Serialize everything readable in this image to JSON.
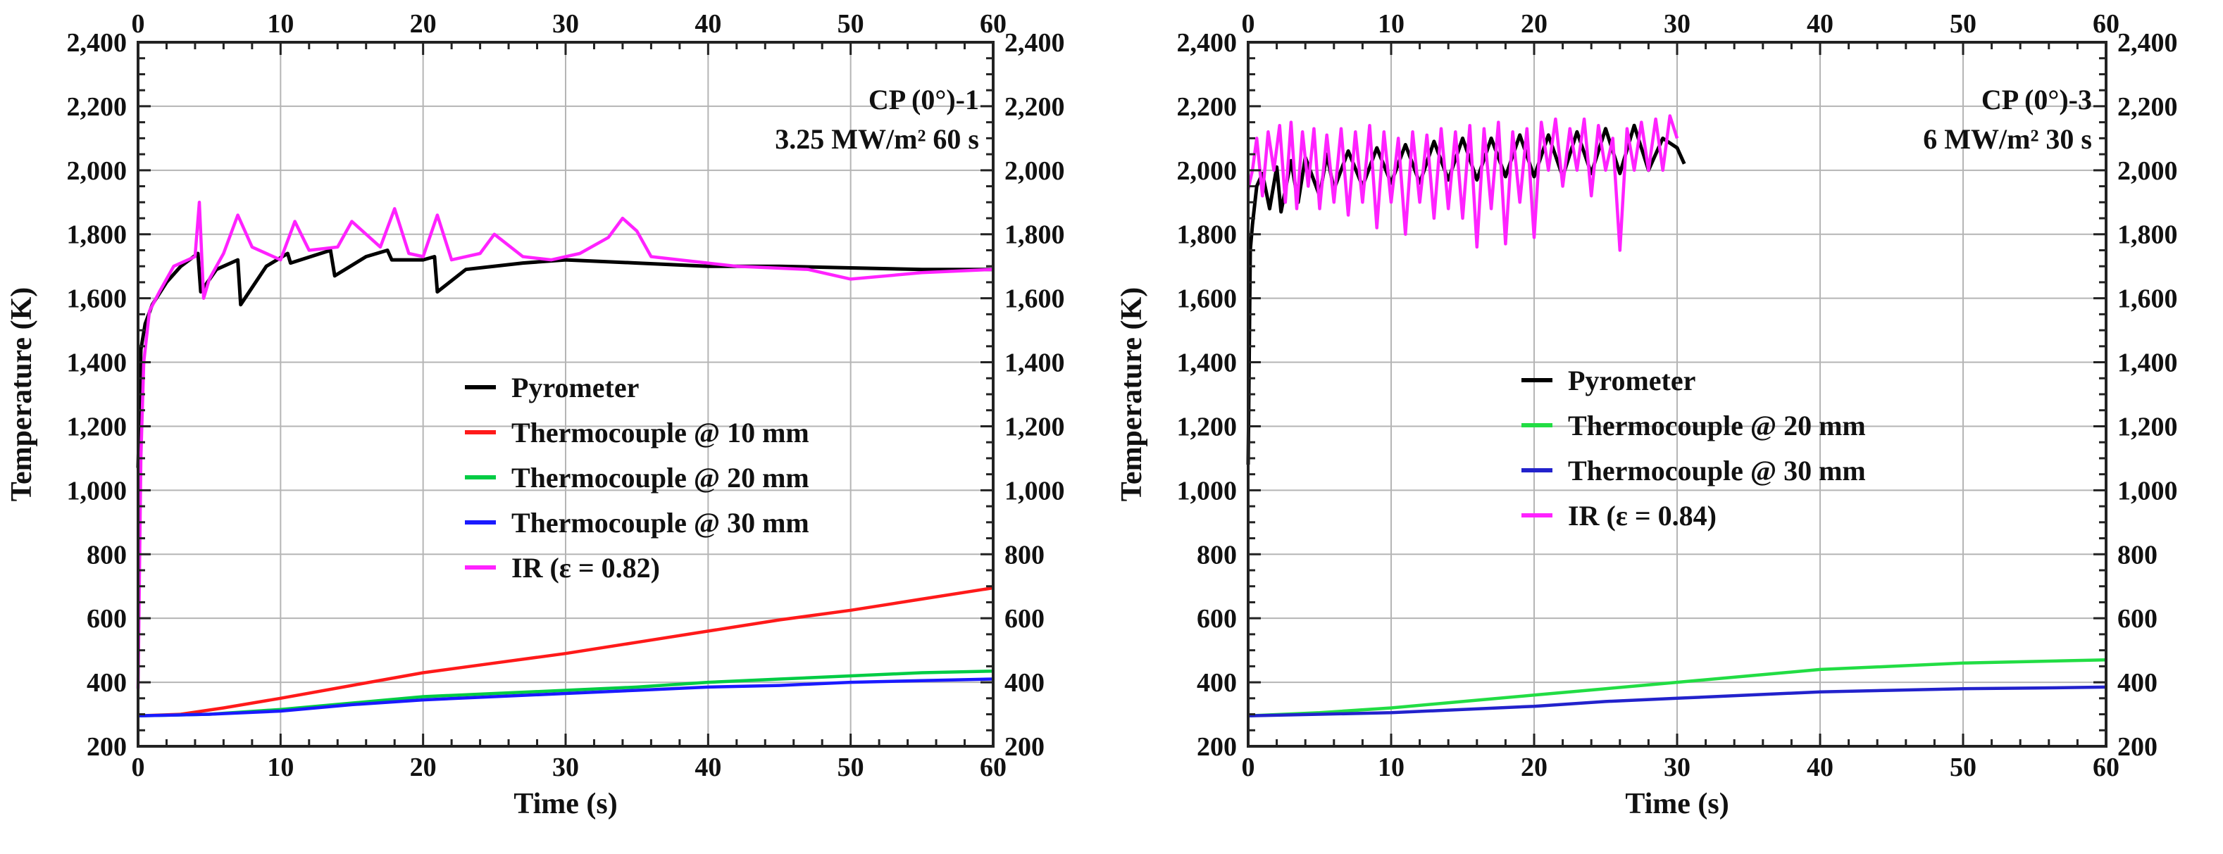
{
  "chart_data": [
    {
      "type": "line",
      "annotation": {
        "line1": "CP (0°)-1",
        "line2": "3.25 MW/m² 60 s"
      },
      "xlabel": "Time (s)",
      "ylabel": "Temperature (K)",
      "xlim": [
        0,
        60
      ],
      "ylim": [
        200,
        2400
      ],
      "x_ticks": [
        0,
        10,
        20,
        30,
        40,
        50,
        60
      ],
      "y_ticks": [
        200,
        400,
        600,
        800,
        1000,
        1200,
        1400,
        1600,
        1800,
        2000,
        2200,
        2400
      ],
      "x_tick_labels": [
        "0",
        "10",
        "20",
        "30",
        "40",
        "50",
        "60"
      ],
      "y_tick_labels": [
        "200",
        "400",
        "600",
        "800",
        "1,000",
        "1,200",
        "1,400",
        "1,600",
        "1,800",
        "2,000",
        "2,200",
        "2,400"
      ],
      "grid": true,
      "legend_position": "center",
      "series": [
        {
          "name": "Pyrometer",
          "color": "#000000",
          "x": [
            0,
            0.2,
            0.5,
            1,
            2,
            3,
            4.2,
            4.4,
            5.5,
            7,
            7.2,
            9,
            10.5,
            10.7,
            13.5,
            13.8,
            16,
            17.5,
            17.8,
            20,
            20.8,
            21,
            23,
            27,
            30,
            35,
            40,
            45,
            50,
            55,
            60
          ],
          "values": [
            1070,
            1440,
            1520,
            1580,
            1650,
            1700,
            1740,
            1620,
            1690,
            1720,
            1580,
            1700,
            1740,
            1710,
            1750,
            1670,
            1730,
            1750,
            1720,
            1720,
            1730,
            1620,
            1690,
            1710,
            1720,
            1710,
            1700,
            1700,
            1695,
            1690,
            1690
          ]
        },
        {
          "name": "Thermocouple @ 10 mm",
          "color": "#ff1a1a",
          "x": [
            0,
            3,
            6,
            10,
            15,
            20,
            25,
            30,
            35,
            40,
            45,
            50,
            55,
            60
          ],
          "values": [
            295,
            300,
            320,
            350,
            390,
            430,
            460,
            490,
            525,
            560,
            595,
            625,
            660,
            695
          ]
        },
        {
          "name": "Thermocouple @ 20 mm",
          "color": "#00cc44",
          "x": [
            0,
            5,
            10,
            15,
            20,
            25,
            30,
            35,
            40,
            45,
            50,
            55,
            60
          ],
          "values": [
            295,
            300,
            315,
            335,
            355,
            365,
            375,
            385,
            400,
            410,
            420,
            430,
            435
          ]
        },
        {
          "name": "Thermocouple @ 30 mm",
          "color": "#1a1aff",
          "x": [
            0,
            5,
            10,
            15,
            20,
            25,
            30,
            35,
            40,
            45,
            50,
            55,
            60
          ],
          "values": [
            295,
            300,
            310,
            330,
            345,
            355,
            365,
            375,
            385,
            390,
            400,
            405,
            410
          ]
        },
        {
          "name": "IR (ε = 0.82)",
          "color": "#ff22ff",
          "x": [
            0,
            0.2,
            0.4,
            0.8,
            1.5,
            2.5,
            4,
            4.3,
            4.6,
            5,
            6,
            7,
            8,
            10,
            11,
            12,
            14,
            15,
            17,
            18,
            19,
            20,
            21,
            22,
            24,
            25,
            27,
            29,
            31,
            33,
            34,
            35,
            36,
            38,
            42,
            47,
            50,
            55,
            60
          ],
          "values": [
            380,
            1100,
            1400,
            1560,
            1620,
            1700,
            1730,
            1900,
            1600,
            1660,
            1740,
            1860,
            1760,
            1720,
            1840,
            1750,
            1760,
            1840,
            1760,
            1880,
            1740,
            1730,
            1860,
            1720,
            1740,
            1800,
            1730,
            1720,
            1740,
            1790,
            1850,
            1810,
            1730,
            1720,
            1700,
            1690,
            1660,
            1680,
            1690
          ]
        }
      ]
    },
    {
      "type": "line",
      "annotation": {
        "line1": "CP (0°)-3",
        "line2": "6 MW/m² 30 s"
      },
      "xlabel": "Time (s)",
      "ylabel": "Temperature (K)",
      "xlim": [
        0,
        60
      ],
      "ylim": [
        200,
        2400
      ],
      "x_ticks": [
        0,
        10,
        20,
        30,
        40,
        50,
        60
      ],
      "y_ticks": [
        200,
        400,
        600,
        800,
        1000,
        1200,
        1400,
        1600,
        1800,
        2000,
        2200,
        2400
      ],
      "x_tick_labels": [
        "0",
        "10",
        "20",
        "30",
        "40",
        "50",
        "60"
      ],
      "y_tick_labels": [
        "200",
        "400",
        "600",
        "800",
        "1,000",
        "1,200",
        "1,400",
        "1,600",
        "1,800",
        "2,000",
        "2,200",
        "2,400"
      ],
      "grid": true,
      "legend_position": "center",
      "series": [
        {
          "name": "Pyrometer",
          "color": "#000000",
          "x": [
            0,
            0.15,
            0.3,
            0.6,
            1,
            1.5,
            2,
            2.3,
            3,
            3.5,
            4,
            5,
            5.5,
            6,
            7,
            8,
            9,
            10,
            11,
            12,
            13,
            14,
            15,
            16,
            17,
            18,
            19,
            20,
            21,
            22,
            23,
            24,
            25,
            26,
            27,
            28,
            29,
            30,
            30.5
          ],
          "values": [
            1080,
            1750,
            1830,
            1950,
            1990,
            1880,
            2010,
            1870,
            2030,
            1900,
            2040,
            1920,
            2050,
            1940,
            2060,
            1950,
            2070,
            1960,
            2080,
            1960,
            2090,
            1970,
            2100,
            1970,
            2100,
            1980,
            2110,
            1980,
            2110,
            1980,
            2120,
            1990,
            2130,
            1990,
            2140,
            2000,
            2100,
            2070,
            2020
          ]
        },
        {
          "name": "Thermocouple @ 20 mm",
          "color": "#22dd44",
          "x": [
            0,
            5,
            10,
            15,
            20,
            25,
            30,
            35,
            40,
            45,
            50,
            55,
            60
          ],
          "values": [
            295,
            305,
            320,
            340,
            360,
            380,
            400,
            420,
            440,
            450,
            460,
            465,
            470
          ]
        },
        {
          "name": "Thermocouple @ 30 mm",
          "color": "#2222cc",
          "x": [
            0,
            5,
            10,
            15,
            20,
            25,
            30,
            35,
            40,
            45,
            50,
            55,
            60
          ],
          "values": [
            295,
            300,
            305,
            315,
            325,
            340,
            350,
            360,
            370,
            375,
            380,
            382,
            385
          ]
        },
        {
          "name": "IR (ε = 0.84)",
          "color": "#ff22ff",
          "x": [
            0,
            0.3,
            0.6,
            1,
            1.4,
            1.8,
            2.2,
            2.6,
            3,
            3.4,
            3.8,
            4.2,
            4.6,
            5,
            5.5,
            6,
            6.5,
            7,
            7.5,
            8,
            8.5,
            9,
            9.5,
            10,
            10.5,
            11,
            11.5,
            12,
            12.5,
            13,
            13.5,
            14,
            14.5,
            15,
            15.5,
            16,
            16.5,
            17,
            17.5,
            18,
            18.5,
            19,
            19.5,
            20,
            20.5,
            21,
            21.5,
            22,
            22.5,
            23,
            23.5,
            24,
            24.5,
            25,
            25.5,
            26,
            26.5,
            27,
            27.5,
            28,
            28.5,
            29,
            29.5,
            30
          ],
          "values": [
            1940,
            2000,
            2100,
            1920,
            2120,
            2000,
            2140,
            1900,
            2150,
            1880,
            2120,
            1950,
            2130,
            1880,
            2110,
            1900,
            2130,
            1860,
            2120,
            1900,
            2140,
            1820,
            2120,
            1900,
            2100,
            1800,
            2120,
            1900,
            2110,
            1850,
            2130,
            1880,
            2120,
            1850,
            2140,
            1760,
            2130,
            1880,
            2150,
            1770,
            2120,
            1900,
            2130,
            1790,
            2150,
            2000,
            2160,
            1950,
            2130,
            2000,
            2160,
            1920,
            2140,
            2000,
            2100,
            1750,
            2130,
            2000,
            2150,
            2000,
            2160,
            2000,
            2170,
            2100
          ]
        }
      ]
    }
  ]
}
